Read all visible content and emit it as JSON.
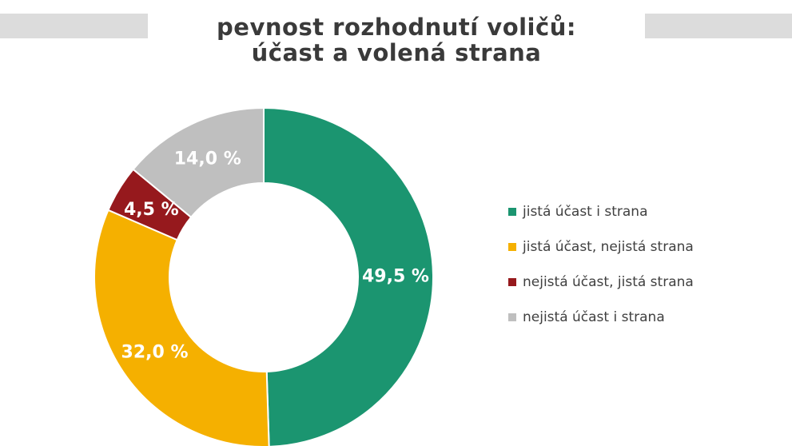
{
  "header": {
    "title_line1": "pevnost rozhodnutí voličů:",
    "title_line2": "účast a volená strana"
  },
  "chart_data": {
    "type": "pie",
    "donut": true,
    "legend_position": "right",
    "categories": [
      "jistá účast i strana",
      "jistá účast, nejistá strana",
      "nejistá účast, jistá strana",
      "nejistá účast i strana"
    ],
    "values": [
      49.5,
      32.0,
      4.5,
      14.0
    ],
    "data_labels": [
      "49,5 %",
      "32,0 %",
      "4,5 %",
      "14,0 %"
    ],
    "colors": [
      "#1b9570",
      "#f5b000",
      "#96191d",
      "#bfbfbf"
    ]
  }
}
